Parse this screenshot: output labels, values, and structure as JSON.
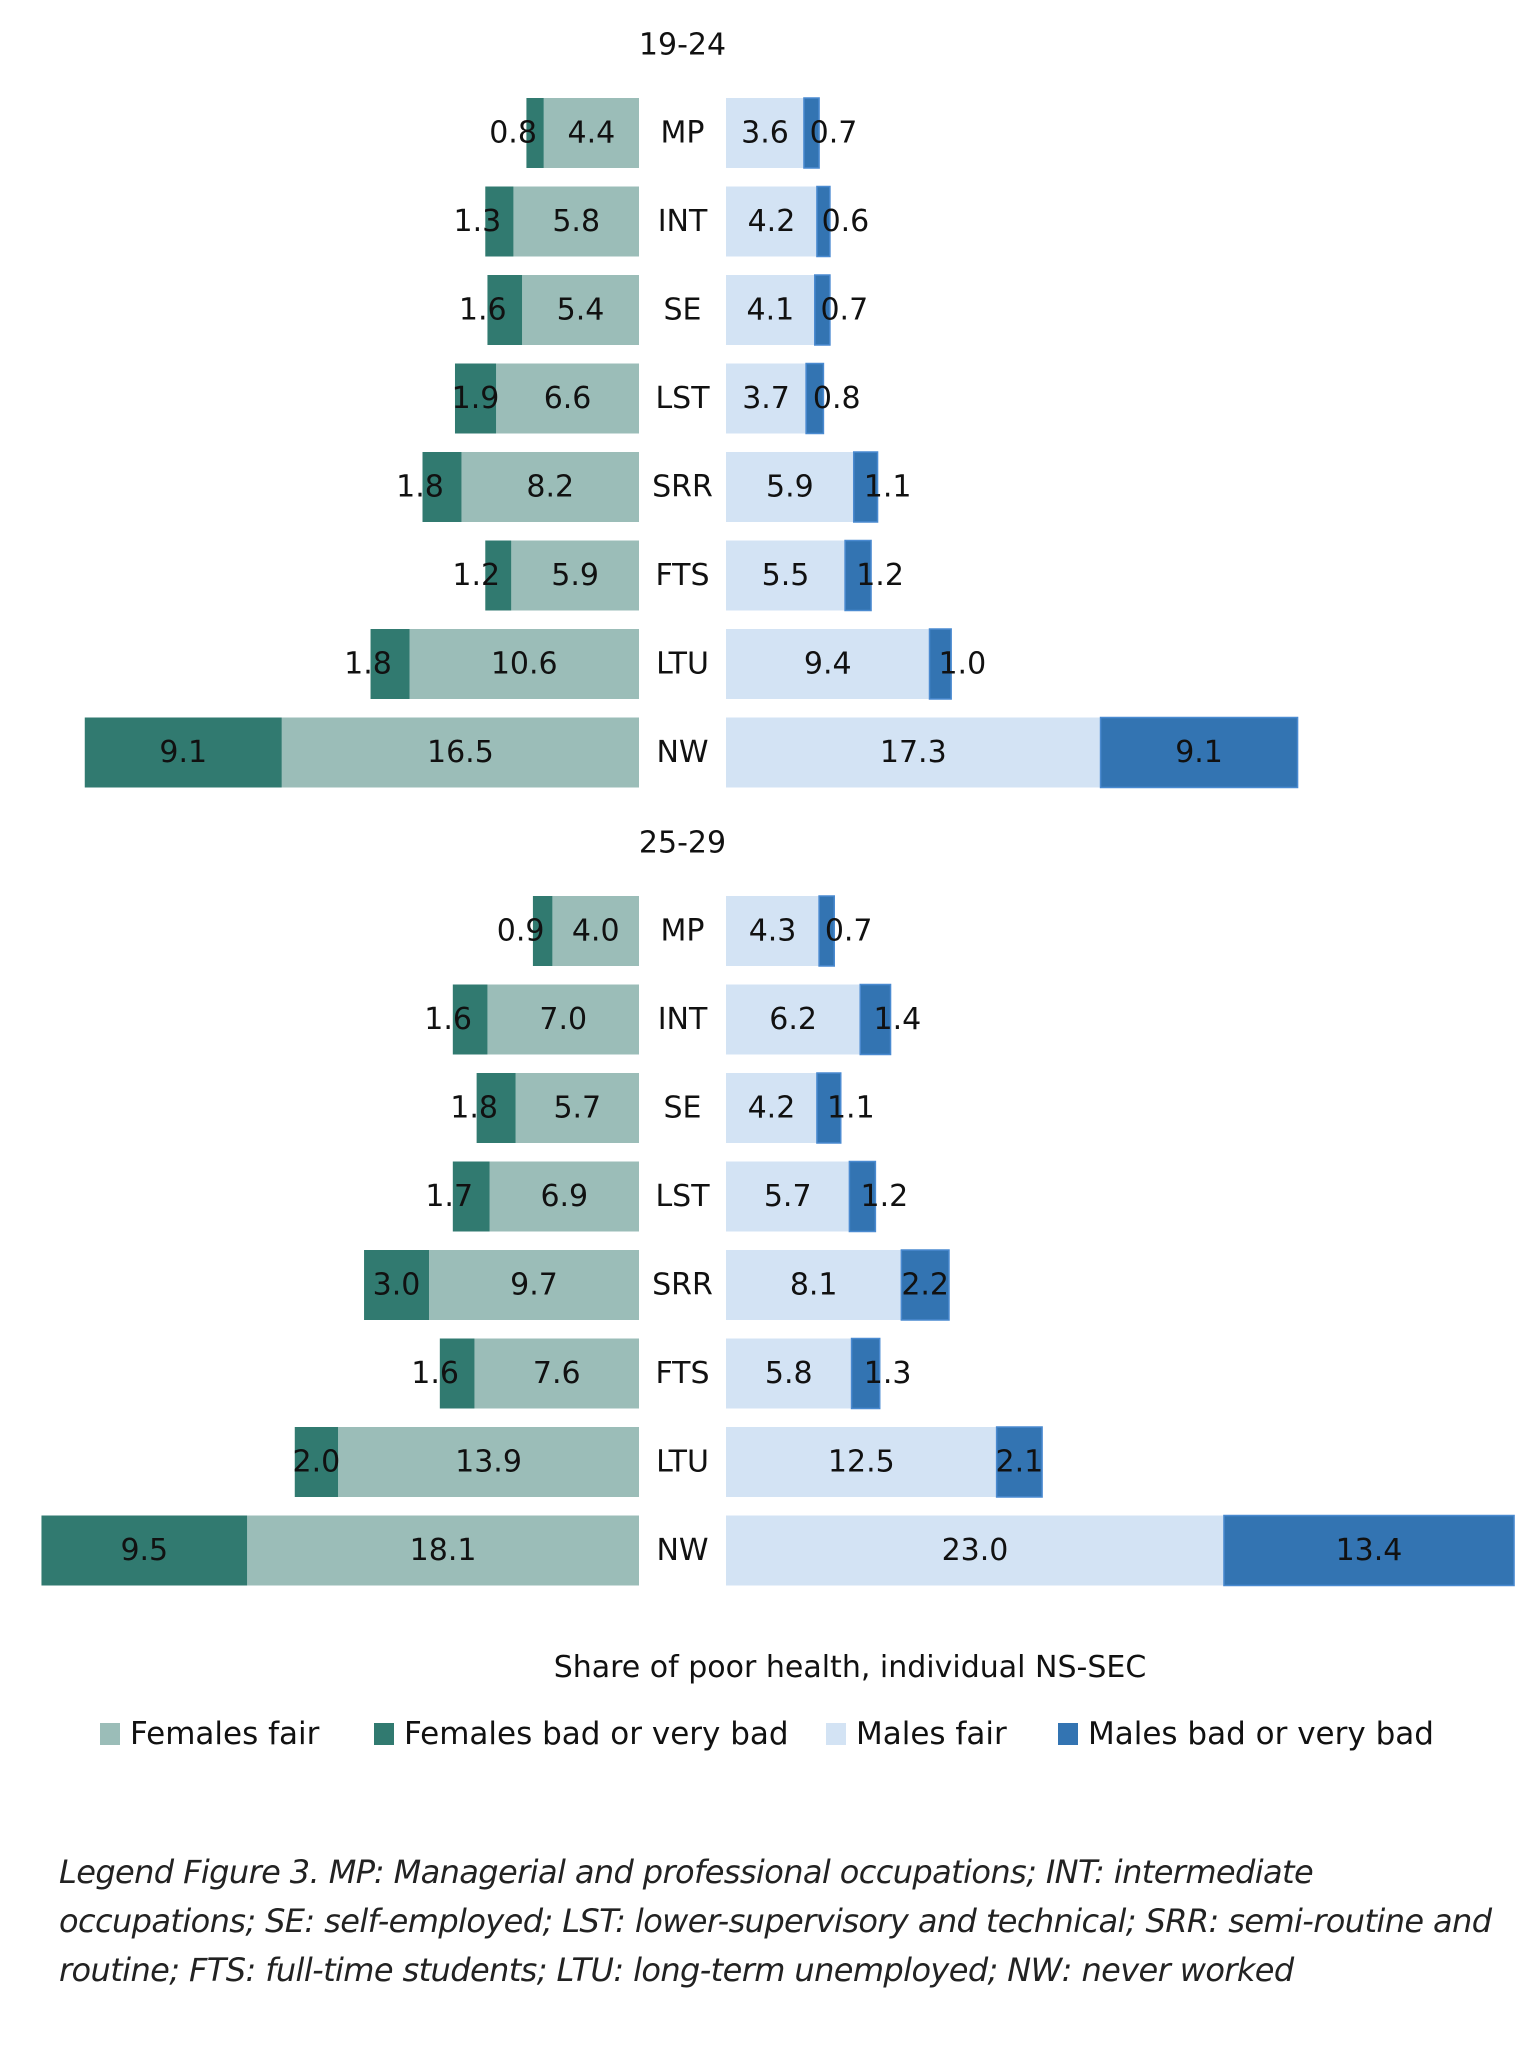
{
  "chart_data": {
    "type": "bar",
    "subtype": "diverging-stacked-horizontal",
    "title": "",
    "xlabel": "Share of poor health, individual NS-SEC",
    "ylabel": "",
    "categories": [
      "MP",
      "INT",
      "SE",
      "LST",
      "SRR",
      "FTS",
      "LTU",
      "NW"
    ],
    "legend": {
      "placement": "bottom",
      "entries": [
        {
          "name": "Females fair",
          "color": "#9bbdb8"
        },
        {
          "name": "Females bad or very bad",
          "color": "#317a70"
        },
        {
          "name": "Males fair",
          "color": "#d3e3f4"
        },
        {
          "name": "Males bad or very bad",
          "color": "#3374b2"
        }
      ]
    },
    "panels": [
      {
        "title": "19-24",
        "series": [
          {
            "name": "Females fair",
            "side": "left",
            "values": [
              4.4,
              5.8,
              5.4,
              6.6,
              8.2,
              5.9,
              10.6,
              16.5
            ]
          },
          {
            "name": "Females bad or very bad",
            "side": "left",
            "values": [
              0.8,
              1.3,
              1.6,
              1.9,
              1.8,
              1.2,
              1.8,
              9.1
            ]
          },
          {
            "name": "Males fair",
            "side": "right",
            "values": [
              3.6,
              4.2,
              4.1,
              3.7,
              5.9,
              5.5,
              9.4,
              17.3
            ]
          },
          {
            "name": "Males bad or very bad",
            "side": "right",
            "values": [
              0.7,
              0.6,
              0.7,
              0.8,
              1.1,
              1.2,
              1.0,
              9.1
            ]
          }
        ]
      },
      {
        "title": "25-29",
        "series": [
          {
            "name": "Females fair",
            "side": "left",
            "values": [
              4.0,
              7.0,
              5.7,
              6.9,
              9.7,
              7.6,
              13.9,
              18.1
            ]
          },
          {
            "name": "Females bad or very bad",
            "side": "left",
            "values": [
              0.9,
              1.6,
              1.8,
              1.7,
              3.0,
              1.6,
              2.0,
              9.5
            ]
          },
          {
            "name": "Males fair",
            "side": "right",
            "values": [
              4.3,
              6.2,
              4.2,
              5.7,
              8.1,
              5.8,
              12.5,
              23.0
            ]
          },
          {
            "name": "Males bad or very bad",
            "side": "right",
            "values": [
              0.7,
              1.4,
              1.1,
              1.2,
              2.2,
              1.3,
              2.1,
              13.4
            ]
          }
        ]
      }
    ],
    "grid": false
  },
  "axis_title": "Share of poor health, individual NS-SEC",
  "caption": "Legend Figure 3. MP: Managerial and professional occupations; INT: intermediate occupations; SE: self-employed; LST: lower-supervisory and technical; SRR: semi-routine and routine; FTS: full-time students; LTU: long-term unemployed; NW: never worked"
}
